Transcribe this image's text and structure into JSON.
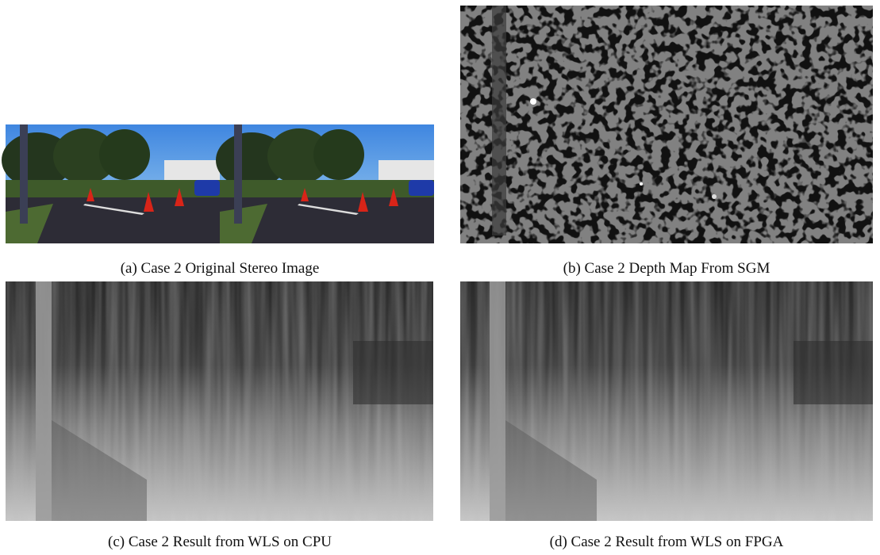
{
  "figures": [
    {
      "caption": "(a) Case 2 Original Stereo Image"
    },
    {
      "caption": "(b) Case 2 Depth Map From SGM"
    },
    {
      "caption": "(c) Case 2 Result from WLS on CPU"
    },
    {
      "caption": "(d) Case 2 Result from WLS on FPGA"
    }
  ]
}
